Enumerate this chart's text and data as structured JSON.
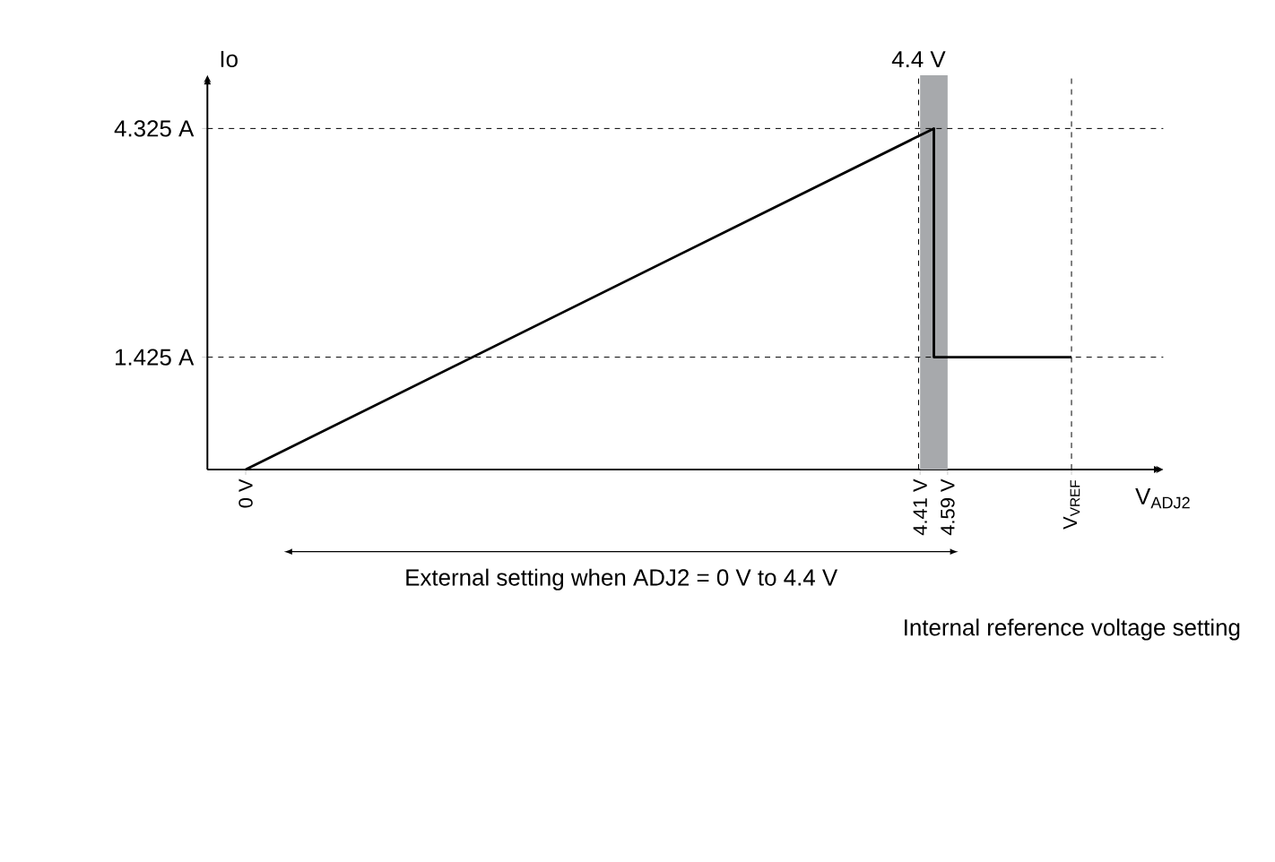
{
  "chart_data": {
    "type": "line",
    "xlabel": "V$_{ADJ2}$",
    "ylabel": "Io",
    "x": [
      0,
      4.5,
      4.5,
      5.4
    ],
    "series": [
      {
        "color": "#000000",
        "values": [
          0,
          4.325,
          1.425,
          1.425
        ]
      }
    ],
    "xlim": [
      -0.25,
      6
    ],
    "ylim": [
      0,
      5
    ],
    "xticks": [
      {
        "value": 0,
        "label": "0 V"
      },
      {
        "value": 4.41,
        "label": "4.41 V"
      },
      {
        "value": 4.59,
        "label": "4.59 V"
      },
      {
        "value": 5.4,
        "label": "V$_{VREF}$"
      }
    ],
    "yticks": [
      {
        "value": 1.425,
        "label": "1.425 A"
      },
      {
        "value": 4.325,
        "label": "4.325 A"
      }
    ],
    "ref_lines": [
      {
        "axis": "x",
        "value": 4.4,
        "label": "4.4 V",
        "line_style": "dashed"
      },
      {
        "axis": "x",
        "value": 5.4,
        "line_style": "dashed"
      },
      {
        "axis": "y",
        "value": 4.325,
        "line_style": "dashed"
      },
      {
        "axis": "y",
        "value": 1.425,
        "line_style": "dashed"
      }
    ],
    "bands": [
      {
        "axis": "x",
        "from": 4.41,
        "to": 4.59,
        "color": "#a7a9ac"
      }
    ],
    "annotations": [
      "External setting when ADJ2 = 0 V to 4.4 V",
      "Internal reference voltage setting"
    ],
    "grid": false,
    "marker": "none",
    "line_style": "solid"
  }
}
